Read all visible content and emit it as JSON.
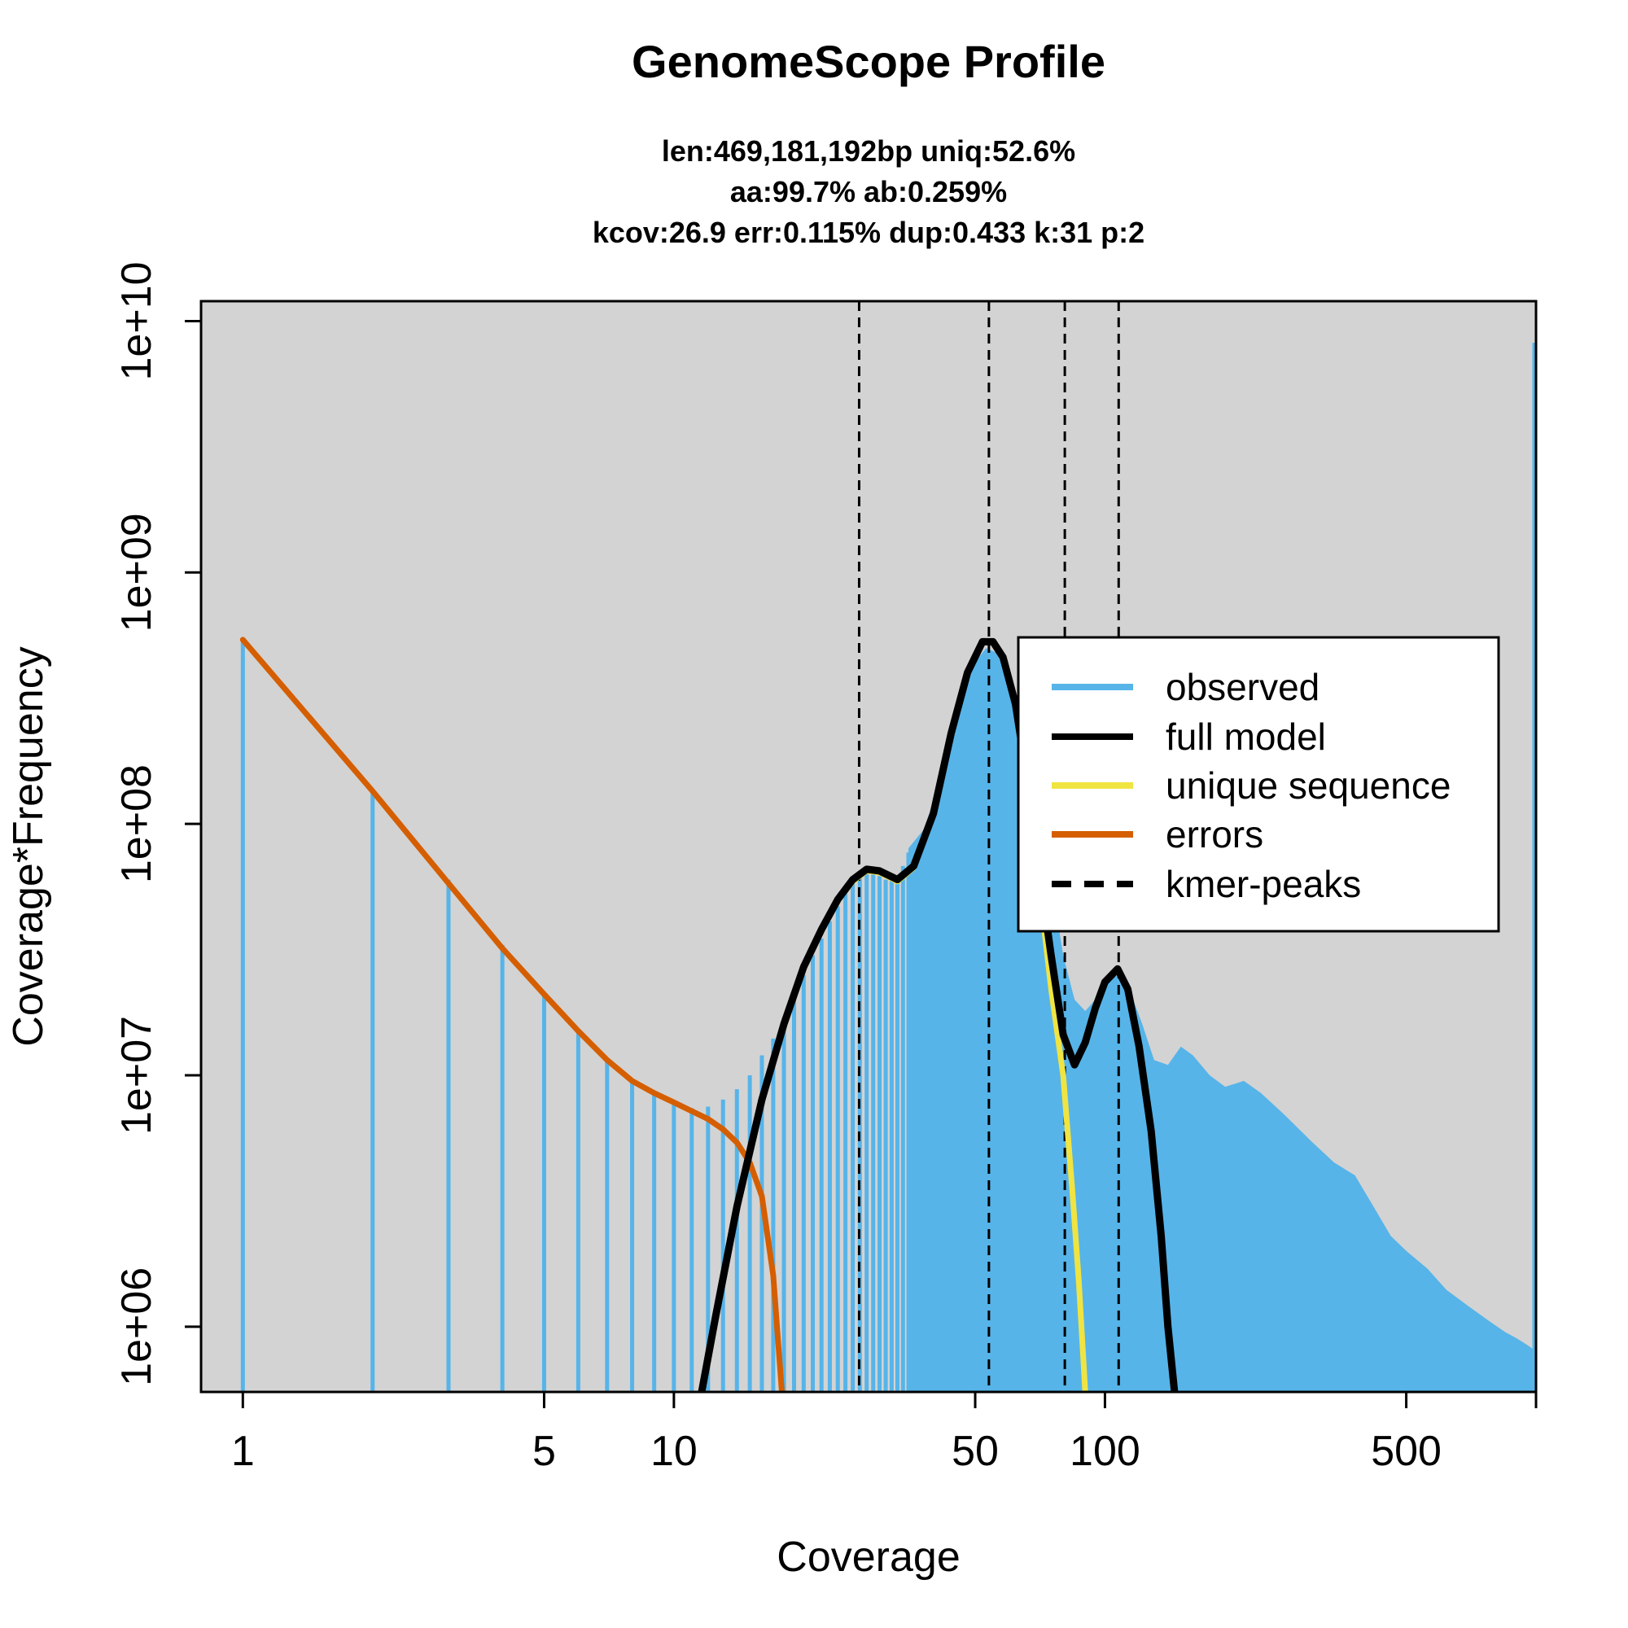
{
  "chart_data": {
    "type": "line",
    "title": "GenomeScope Profile",
    "subtitle_lines": [
      "len:469,181,192bp uniq:52.6%",
      "aa:99.7% ab:0.259%",
      "kcov:26.9 err:0.115%  dup:0.433  k:31 p:2"
    ],
    "xlabel": "Coverage",
    "ylabel": "Coverage*Frequency",
    "x_scale": "log",
    "y_scale": "log",
    "xlim": [
      0.8,
      1000
    ],
    "ylim": [
      550000,
      12000000000
    ],
    "x_ticks": [
      {
        "value": 1,
        "label": "1"
      },
      {
        "value": 5,
        "label": "5"
      },
      {
        "value": 10,
        "label": "10"
      },
      {
        "value": 50,
        "label": "50"
      },
      {
        "value": 100,
        "label": "100"
      },
      {
        "value": 500,
        "label": "500"
      },
      {
        "value": 1000,
        "label": ""
      }
    ],
    "y_ticks": [
      {
        "value": 1000000,
        "label": "1e+06"
      },
      {
        "value": 10000000,
        "label": "1e+07"
      },
      {
        "value": 100000000,
        "label": "1e+08"
      },
      {
        "value": 1000000000,
        "label": "1e+09"
      },
      {
        "value": 10000000000,
        "label": "1e+10"
      }
    ],
    "background_color": "#d3d3d3",
    "kmer_peaks": [
      26.9,
      53.8,
      80.7,
      107.6
    ],
    "observed_spikes": [
      {
        "x": 1,
        "y": 540000000
      },
      {
        "x": 2,
        "y": 135000000
      },
      {
        "x": 3,
        "y": 60000000
      },
      {
        "x": 4,
        "y": 33000000
      },
      {
        "x": 5,
        "y": 21000000
      },
      {
        "x": 6,
        "y": 15000000
      },
      {
        "x": 7,
        "y": 11500000
      },
      {
        "x": 8,
        "y": 9500000
      },
      {
        "x": 9,
        "y": 8500000
      },
      {
        "x": 10,
        "y": 7800000
      },
      {
        "x": 11,
        "y": 7400000
      },
      {
        "x": 12,
        "y": 7500000
      },
      {
        "x": 13,
        "y": 8000000
      },
      {
        "x": 14,
        "y": 8800000
      },
      {
        "x": 15,
        "y": 10000000
      },
      {
        "x": 16,
        "y": 12000000
      },
      {
        "x": 17,
        "y": 14000000
      },
      {
        "x": 18,
        "y": 17000000
      },
      {
        "x": 19,
        "y": 21000000
      },
      {
        "x": 20,
        "y": 25000000
      },
      {
        "x": 21,
        "y": 30000000
      },
      {
        "x": 22,
        "y": 35000000
      },
      {
        "x": 23,
        "y": 41000000
      },
      {
        "x": 24,
        "y": 47000000
      },
      {
        "x": 25,
        "y": 53000000
      },
      {
        "x": 26,
        "y": 58000000
      },
      {
        "x": 27,
        "y": 62000000
      },
      {
        "x": 28,
        "y": 64000000
      },
      {
        "x": 29,
        "y": 64000000
      },
      {
        "x": 30,
        "y": 62000000
      },
      {
        "x": 31,
        "y": 60000000
      },
      {
        "x": 32,
        "y": 60000000
      },
      {
        "x": 33,
        "y": 62000000
      },
      {
        "x": 34,
        "y": 68000000
      },
      {
        "x": 35,
        "y": 77000000
      }
    ],
    "observed_area": [
      [
        35,
        80000000
      ],
      [
        38,
        95000000
      ],
      [
        41,
        140000000
      ],
      [
        44,
        230000000
      ],
      [
        47,
        340000000
      ],
      [
        50,
        440000000
      ],
      [
        53,
        500000000
      ],
      [
        56,
        480000000
      ],
      [
        60,
        380000000
      ],
      [
        65,
        230000000
      ],
      [
        70,
        120000000
      ],
      [
        75,
        60000000
      ],
      [
        80,
        30000000
      ],
      [
        85,
        20000000
      ],
      [
        90,
        18000000
      ],
      [
        95,
        20000000
      ],
      [
        100,
        24000000
      ],
      [
        108,
        25000000
      ],
      [
        115,
        21000000
      ],
      [
        122,
        16000000
      ],
      [
        130,
        11500000
      ],
      [
        140,
        11000000
      ],
      [
        150,
        13000000
      ],
      [
        160,
        12000000
      ],
      [
        175,
        10000000
      ],
      [
        190,
        9000000
      ],
      [
        210,
        9500000
      ],
      [
        230,
        8500000
      ],
      [
        260,
        7000000
      ],
      [
        300,
        5500000
      ],
      [
        340,
        4500000
      ],
      [
        380,
        4000000
      ],
      [
        420,
        3000000
      ],
      [
        460,
        2300000
      ],
      [
        500,
        2000000
      ],
      [
        560,
        1700000
      ],
      [
        620,
        1400000
      ],
      [
        700,
        1200000
      ],
      [
        780,
        1050000
      ],
      [
        850,
        950000
      ],
      [
        900,
        900000
      ],
      [
        950,
        850000
      ],
      [
        1000,
        800000
      ]
    ],
    "observed_max_spike": {
      "x": 1000,
      "y": 8200000000
    },
    "series": [
      {
        "name": "full model",
        "color": "#000000",
        "points": [
          [
            11.6,
            550000
          ],
          [
            12.5,
            1100000
          ],
          [
            14,
            3000000
          ],
          [
            16,
            8000000
          ],
          [
            18,
            16000000
          ],
          [
            20,
            27000000
          ],
          [
            22,
            38000000
          ],
          [
            24,
            50000000
          ],
          [
            26,
            60000000
          ],
          [
            28,
            66000000
          ],
          [
            30,
            65000000
          ],
          [
            33,
            60000000
          ],
          [
            36,
            68000000
          ],
          [
            40,
            110000000
          ],
          [
            44,
            230000000
          ],
          [
            48,
            400000000
          ],
          [
            52,
            530000000
          ],
          [
            55,
            530000000
          ],
          [
            58,
            460000000
          ],
          [
            62,
            300000000
          ],
          [
            66,
            150000000
          ],
          [
            70,
            70000000
          ],
          [
            75,
            30000000
          ],
          [
            80,
            14500000
          ],
          [
            85,
            11000000
          ],
          [
            90,
            13500000
          ],
          [
            95,
            18500000
          ],
          [
            100,
            23500000
          ],
          [
            107,
            26500000
          ],
          [
            113,
            22000000
          ],
          [
            120,
            13000000
          ],
          [
            128,
            6000000
          ],
          [
            135,
            2300000
          ],
          [
            140,
            1000000
          ],
          [
            145,
            550000
          ]
        ]
      },
      {
        "name": "unique sequence",
        "color": "#f0e442",
        "points": [
          [
            14,
            3000000
          ],
          [
            16,
            8000000
          ],
          [
            18,
            15800000
          ],
          [
            20,
            26500000
          ],
          [
            22,
            37500000
          ],
          [
            24,
            49500000
          ],
          [
            26,
            59000000
          ],
          [
            28,
            65000000
          ],
          [
            30,
            64000000
          ],
          [
            33,
            59000000
          ],
          [
            36,
            67000000
          ],
          [
            40,
            108000000
          ],
          [
            44,
            228000000
          ],
          [
            48,
            398000000
          ],
          [
            52,
            528000000
          ],
          [
            55,
            528000000
          ],
          [
            58,
            455000000
          ],
          [
            62,
            295000000
          ],
          [
            66,
            145000000
          ],
          [
            70,
            62000000
          ],
          [
            75,
            22000000
          ],
          [
            80,
            10000000
          ],
          [
            84,
            3500000
          ],
          [
            87,
            1500000
          ],
          [
            90,
            550000
          ]
        ]
      },
      {
        "name": "errors",
        "color": "#d55e00",
        "points": [
          [
            1,
            540000000
          ],
          [
            2,
            135000000
          ],
          [
            3,
            58000000
          ],
          [
            4,
            32000000
          ],
          [
            5,
            21000000
          ],
          [
            6,
            15000000
          ],
          [
            7,
            11500000
          ],
          [
            8,
            9500000
          ],
          [
            9,
            8500000
          ],
          [
            10,
            7800000
          ],
          [
            11,
            7200000
          ],
          [
            12,
            6700000
          ],
          [
            13,
            6100000
          ],
          [
            14,
            5400000
          ],
          [
            15,
            4500000
          ],
          [
            16,
            3300000
          ],
          [
            17,
            1600000
          ],
          [
            17.8,
            550000
          ]
        ]
      }
    ],
    "legend": {
      "placement": "right",
      "entries": [
        {
          "label": "observed",
          "color": "#56b4e9",
          "style": "solid"
        },
        {
          "label": "full model",
          "color": "#000000",
          "style": "solid"
        },
        {
          "label": "unique sequence",
          "color": "#f0e442",
          "style": "solid"
        },
        {
          "label": "errors",
          "color": "#d55e00",
          "style": "solid"
        },
        {
          "label": "kmer-peaks",
          "color": "#000000",
          "style": "dashed"
        }
      ]
    }
  }
}
